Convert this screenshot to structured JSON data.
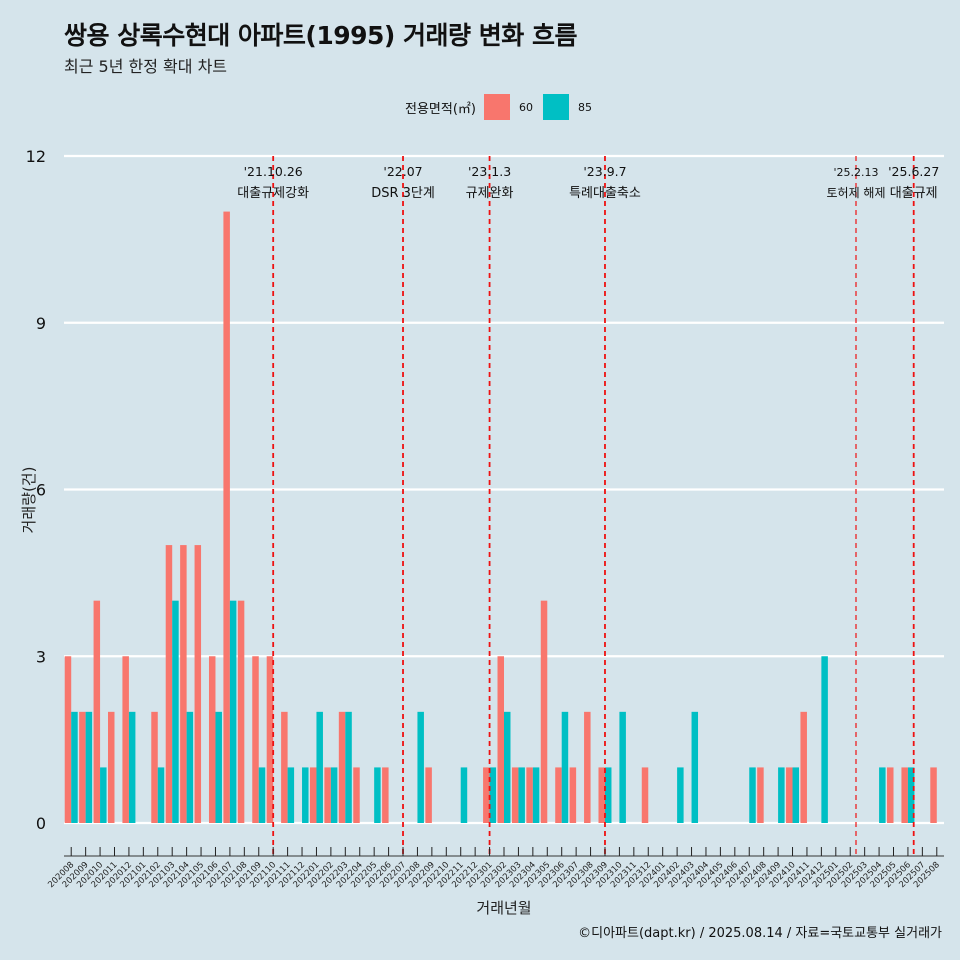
{
  "title": "쌍용 상록수현대 아파트(1995) 거래량 변화 흐름",
  "subtitle": "최근 5년 한정 확대 차트",
  "caption": "©디아파트(dapt.kr) / 2025.08.14 / 자료=국토교통부 실거래가",
  "legend": {
    "title": "전용면적(㎡)",
    "items": [
      {
        "label": "60",
        "color": "#f8766d"
      },
      {
        "label": "85",
        "color": "#00bfc4"
      }
    ]
  },
  "chart_data": {
    "type": "bar",
    "title": "쌍용 상록수현대 아파트(1995) 거래량 변화 흐름",
    "subtitle": "최근 5년 한정 확대 차트",
    "xlabel": "거래년월",
    "ylabel": "거래량(건)",
    "ylim": [
      0,
      12
    ],
    "yticks": [
      0,
      3,
      6,
      9,
      12
    ],
    "grid": true,
    "legend_position": "top",
    "categories": [
      "202008",
      "202009",
      "202010",
      "202011",
      "202012",
      "202101",
      "202102",
      "202103",
      "202104",
      "202105",
      "202106",
      "202107",
      "202108",
      "202109",
      "202110",
      "202111",
      "202112",
      "202201",
      "202202",
      "202203",
      "202204",
      "202205",
      "202206",
      "202207",
      "202208",
      "202209",
      "202210",
      "202211",
      "202212",
      "202301",
      "202302",
      "202303",
      "202304",
      "202305",
      "202306",
      "202307",
      "202308",
      "202309",
      "202310",
      "202311",
      "202312",
      "202401",
      "202402",
      "202403",
      "202404",
      "202405",
      "202406",
      "202407",
      "202408",
      "202409",
      "202410",
      "202411",
      "202412",
      "202501",
      "202502",
      "202503",
      "202504",
      "202505",
      "202506",
      "202507",
      "202508"
    ],
    "series": [
      {
        "name": "60",
        "color": "#f8766d",
        "values": [
          3,
          2,
          4,
          2,
          3,
          0,
          2,
          5,
          5,
          5,
          3,
          11,
          4,
          3,
          3,
          2,
          0,
          1,
          1,
          2,
          1,
          0,
          1,
          0,
          0,
          1,
          0,
          0,
          0,
          1,
          3,
          1,
          1,
          4,
          1,
          1,
          2,
          1,
          0,
          0,
          1,
          0,
          0,
          0,
          0,
          0,
          0,
          0,
          1,
          0,
          1,
          2,
          0,
          0,
          0,
          0,
          0,
          1,
          1,
          0,
          1
        ]
      },
      {
        "name": "85",
        "color": "#00bfc4",
        "values": [
          2,
          2,
          1,
          0,
          2,
          0,
          1,
          4,
          2,
          0,
          2,
          4,
          0,
          1,
          0,
          1,
          1,
          2,
          1,
          2,
          0,
          1,
          0,
          0,
          2,
          0,
          0,
          1,
          0,
          1,
          2,
          1,
          1,
          0,
          2,
          0,
          0,
          1,
          2,
          0,
          0,
          0,
          1,
          2,
          0,
          0,
          0,
          1,
          0,
          1,
          1,
          0,
          3,
          0,
          0,
          0,
          1,
          0,
          1,
          0,
          0
        ]
      }
    ],
    "annotations": [
      {
        "position": 14.0,
        "date": "'21.10.26",
        "label": "대출규제강화"
      },
      {
        "position": 23.0,
        "date": "'22.07",
        "label": "DSR 3단계"
      },
      {
        "position": 29.0,
        "date": "'23.1.3",
        "label": "규제완화"
      },
      {
        "position": 37.0,
        "date": "'23.9.7",
        "label": "특례대출축소"
      },
      {
        "position": 54.4,
        "date": "'25.2.13",
        "label": "토허제 해제"
      },
      {
        "position": 58.4,
        "date": "'25.6.27",
        "label": "대출규제"
      }
    ]
  }
}
